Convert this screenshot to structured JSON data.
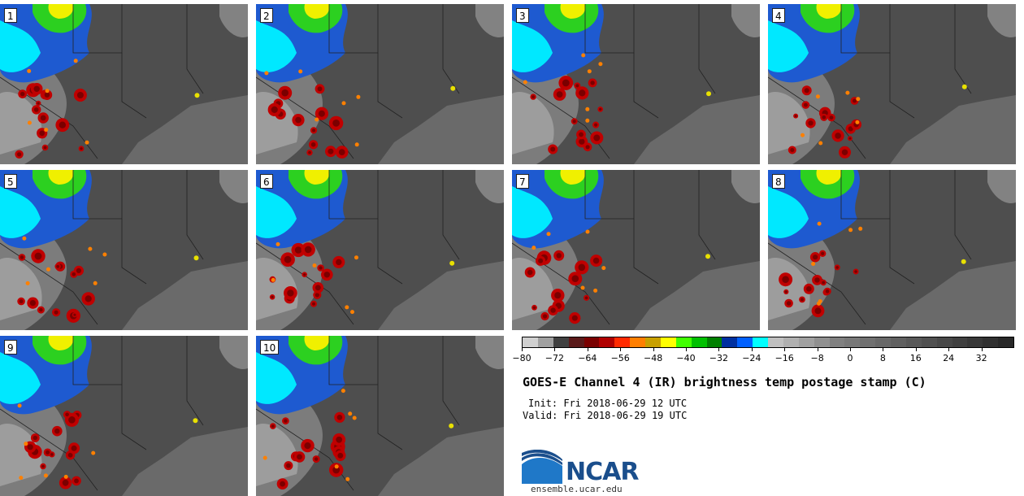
{
  "panels": [
    {
      "label": "1"
    },
    {
      "label": "2"
    },
    {
      "label": "3"
    },
    {
      "label": "4"
    },
    {
      "label": "5"
    },
    {
      "label": "6"
    },
    {
      "label": "7"
    },
    {
      "label": "8"
    },
    {
      "label": "9"
    },
    {
      "label": "10"
    }
  ],
  "colorbar": {
    "colors": [
      "#d0d0d0",
      "#a0a0a0",
      "#404040",
      "#5a1a1a",
      "#7a0000",
      "#b00000",
      "#ff2a00",
      "#ff7f00",
      "#c8a000",
      "#ffff00",
      "#40ff00",
      "#00c000",
      "#008000",
      "#0030a0",
      "#0060ff",
      "#00ffff",
      "#c0c0c0",
      "#b0b0b0",
      "#a0a0a0",
      "#909090",
      "#808080",
      "#787878",
      "#707070",
      "#686868",
      "#606060",
      "#585858",
      "#505050",
      "#484848",
      "#404040",
      "#383838",
      "#303030",
      "#282828"
    ],
    "tick_labels": [
      "−80",
      "−72",
      "−64",
      "−56",
      "−48",
      "−40",
      "−32",
      "−24",
      "−16",
      "−8",
      "0",
      "8",
      "16",
      "24",
      "32"
    ],
    "tick_values": [
      -80,
      -72,
      -64,
      -56,
      -48,
      -40,
      -32,
      -24,
      -16,
      -8,
      0,
      8,
      16,
      24,
      32
    ],
    "range": [
      -80,
      40
    ]
  },
  "title": "GOES-E Channel 4 (IR) brightness temp postage stamp (C)",
  "init": "Init: Fri 2018-06-29 12 UTC",
  "valid": "Valid: Fri 2018-06-29 19 UTC",
  "logo_text": "NCAR",
  "url": "ensemble.ucar.edu"
}
